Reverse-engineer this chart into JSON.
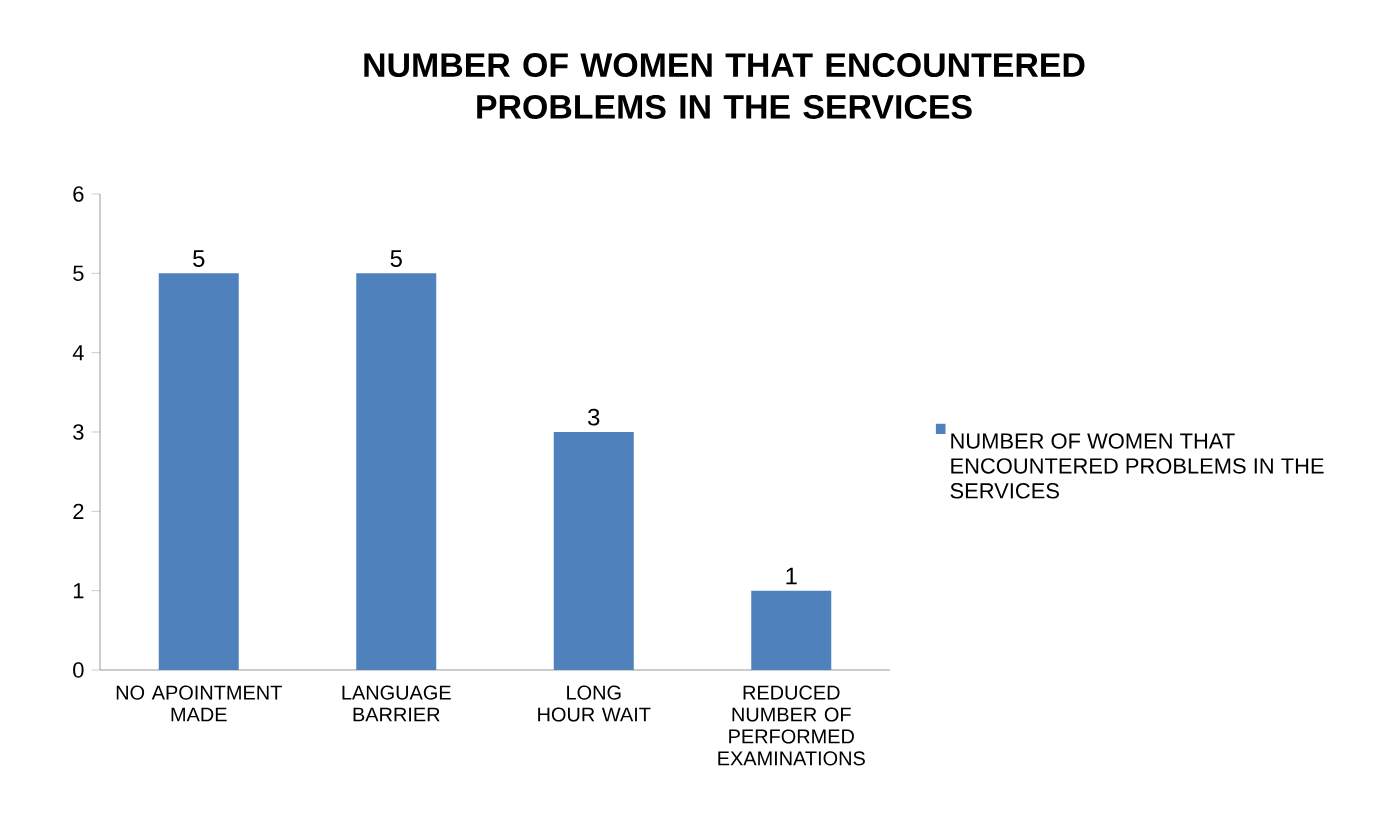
{
  "chart_data": {
    "type": "bar",
    "title": "NUMBER OF WOMEN THAT ENCOUNTERED PROBLEMS IN THE SERVICES",
    "categories": [
      "NO APOINTMENT MADE",
      "LANGUAGE BARRIER",
      "LONG HOUR WAIT",
      "REDUCED NUMBER OF PERFORMED EXAMINATIONS"
    ],
    "series": [
      {
        "name": "NUMBER OF WOMEN THAT ENCOUNTERED PROBLEMS IN THE SERVICES",
        "color": "#4f81bd",
        "values": [
          5,
          5,
          3,
          1
        ]
      }
    ],
    "ylim": [
      0,
      6
    ],
    "yticks": [
      0,
      1,
      2,
      3,
      4,
      5,
      6
    ],
    "data_labels": true,
    "legend": "right"
  }
}
